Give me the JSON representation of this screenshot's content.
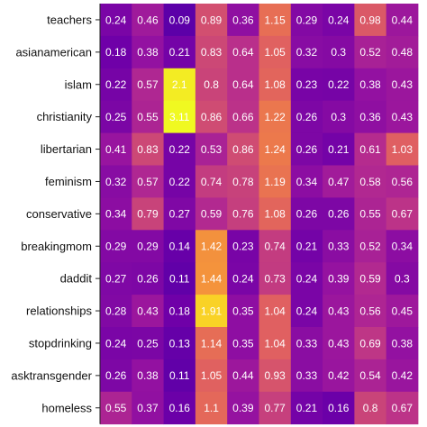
{
  "chart_data": {
    "type": "heatmap",
    "rows": [
      "teachers",
      "asianamerican",
      "islam",
      "christianity",
      "libertarian",
      "feminism",
      "conservative",
      "breakingmom",
      "daddit",
      "relationships",
      "stopdrinking",
      "asktransgender",
      "homeless"
    ],
    "values": [
      [
        "0.24",
        "0.46",
        "0.09",
        "0.89",
        "0.36",
        "1.15",
        "0.29",
        "0.24",
        "0.98",
        "0.44"
      ],
      [
        "0.18",
        "0.38",
        "0.21",
        "0.83",
        "0.64",
        "1.05",
        "0.32",
        "0.3",
        "0.52",
        "0.48"
      ],
      [
        "0.22",
        "0.57",
        "2.1",
        "0.8",
        "0.64",
        "1.08",
        "0.23",
        "0.22",
        "0.38",
        "0.43"
      ],
      [
        "0.25",
        "0.55",
        "3.11",
        "0.86",
        "0.66",
        "1.22",
        "0.26",
        "0.3",
        "0.36",
        "0.43"
      ],
      [
        "0.41",
        "0.83",
        "0.22",
        "0.53",
        "0.86",
        "1.24",
        "0.26",
        "0.21",
        "0.61",
        "1.03"
      ],
      [
        "0.32",
        "0.57",
        "0.22",
        "0.74",
        "0.78",
        "1.19",
        "0.34",
        "0.47",
        "0.58",
        "0.56"
      ],
      [
        "0.34",
        "0.79",
        "0.27",
        "0.59",
        "0.76",
        "1.08",
        "0.26",
        "0.26",
        "0.55",
        "0.67"
      ],
      [
        "0.29",
        "0.29",
        "0.14",
        "1.42",
        "0.23",
        "0.74",
        "0.21",
        "0.33",
        "0.52",
        "0.34"
      ],
      [
        "0.27",
        "0.26",
        "0.11",
        "1.44",
        "0.24",
        "0.73",
        "0.24",
        "0.39",
        "0.59",
        "0.3"
      ],
      [
        "0.28",
        "0.43",
        "0.18",
        "1.91",
        "0.35",
        "1.04",
        "0.24",
        "0.43",
        "0.56",
        "0.45"
      ],
      [
        "0.24",
        "0.25",
        "0.13",
        "1.14",
        "0.35",
        "1.04",
        "0.33",
        "0.43",
        "0.69",
        "0.38"
      ],
      [
        "0.26",
        "0.38",
        "0.11",
        "1.05",
        "0.44",
        "0.93",
        "0.33",
        "0.42",
        "0.54",
        "0.42"
      ],
      [
        "0.55",
        "0.37",
        "0.16",
        "1.1",
        "0.39",
        "0.77",
        "0.21",
        "0.16",
        "0.8",
        "0.67"
      ]
    ],
    "colormap": "plasma",
    "color_range": [
      0,
      2.2
    ],
    "grid": false,
    "legend": "none"
  }
}
